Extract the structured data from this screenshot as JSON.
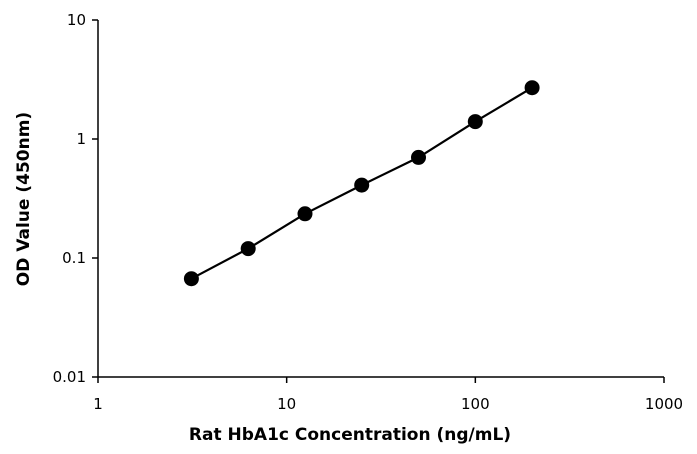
{
  "chart_data": {
    "type": "scatter",
    "xlabel": "Rat HbA1c  Concentration (ng/mL)",
    "ylabel": "OD Value (450nm)",
    "xscale": "log",
    "yscale": "log",
    "xlim": [
      1,
      1000
    ],
    "ylim": [
      0.01,
      10
    ],
    "xticks": [
      "1",
      "10",
      "100",
      "1000"
    ],
    "yticks": [
      "0.01",
      "0.1",
      "1",
      "10"
    ],
    "grid": false,
    "legend": "none",
    "series": [
      {
        "x": [
          3.125,
          6.25,
          12.5,
          25,
          50,
          100,
          200
        ],
        "y": [
          0.067,
          0.12,
          0.235,
          0.41,
          0.7,
          1.4,
          2.7
        ],
        "color": "#000000",
        "marker": "circle",
        "connected": true
      }
    ]
  }
}
